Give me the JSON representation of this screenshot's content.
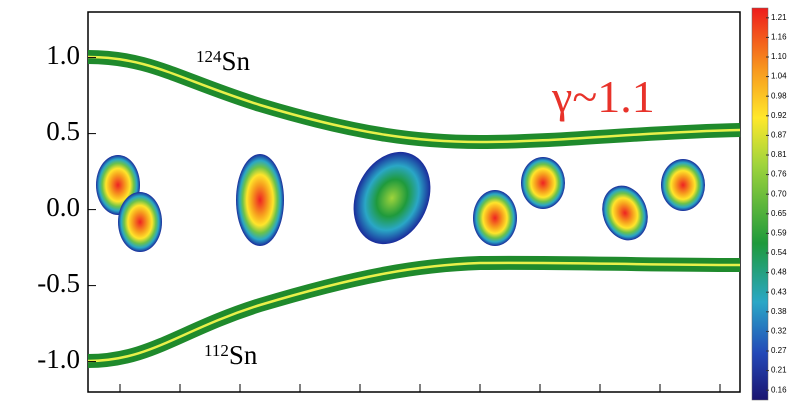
{
  "chart_data": {
    "type": "contour",
    "ylim": [
      -1.2,
      1.3
    ],
    "yticks": [
      {
        "value": 1,
        "label": "1.0"
      },
      0.5,
      {
        "value": 0,
        "label": "0.0"
      },
      -0.5,
      {
        "value": -1,
        "label": "-1.0"
      }
    ],
    "colorbar_ticks": [
      1.21,
      1.16,
      {
        "value": 1.1,
        "label": "1.10"
      },
      1.04,
      0.98,
      0.92,
      0.87,
      0.81,
      0.76,
      {
        "value": 0.7,
        "label": "0.70"
      },
      0.65,
      0.59,
      0.54,
      0.48,
      0.43,
      0.38,
      0.32,
      0.27,
      0.21,
      0.16
    ],
    "annotations": {
      "upper": {
        "mass": "124",
        "symbol": "Sn"
      },
      "lower": {
        "mass": "112",
        "symbol": "Sn"
      },
      "gamma": "γ~1.1"
    },
    "annotation_color": "#e8322a"
  }
}
